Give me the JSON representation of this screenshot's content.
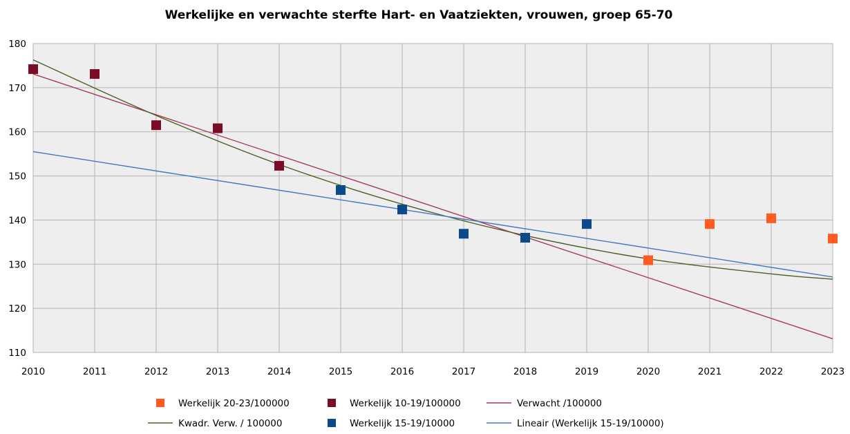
{
  "chart_data": {
    "type": "scatter",
    "title": "Werkelijke en verwachte sterfte Hart- en Vaatziekten, vrouwen, groep 65-70",
    "xlim": [
      2010,
      2023
    ],
    "ylim": [
      110,
      180
    ],
    "x_ticks": [
      "2010",
      "2011",
      "2012",
      "2013",
      "2014",
      "2015",
      "2016",
      "2017",
      "2018",
      "2019",
      "2020",
      "2021",
      "2022",
      "2023"
    ],
    "y_ticks": [
      "110",
      "120",
      "130",
      "140",
      "150",
      "160",
      "170",
      "180"
    ],
    "grid": true,
    "legend_position": "bottom",
    "series": [
      {
        "name": "Werkelijk 20-23/100000",
        "kind": "points",
        "color": "#ff5a1f",
        "x": [
          2020,
          2021,
          2022,
          2023
        ],
        "y": [
          130.9,
          139.1,
          140.4,
          135.8
        ]
      },
      {
        "name": "Werkelijk 10-19/100000",
        "kind": "points",
        "color": "#7b0c25",
        "x": [
          2010,
          2011,
          2012,
          2013,
          2014
        ],
        "y": [
          174.2,
          173.1,
          161.5,
          160.8,
          152.3
        ]
      },
      {
        "name": "Verwacht /100000",
        "kind": "line",
        "color": "#a8395a",
        "x": [
          2010,
          2023
        ],
        "y": [
          173.1,
          113.1
        ]
      },
      {
        "name": "Kwadr. Verw. / 100000",
        "kind": "curve",
        "color": "#4d5e1f",
        "x": [
          2010,
          2012,
          2014,
          2016,
          2018,
          2020,
          2022,
          2023
        ],
        "y": [
          176.3,
          163.7,
          152.6,
          143.6,
          136.5,
          131.2,
          127.8,
          126.6
        ]
      },
      {
        "name": "Werkelijk 15-19/10000",
        "kind": "points",
        "color": "#0d4a8c",
        "x": [
          2015,
          2016,
          2017,
          2018,
          2019
        ],
        "y": [
          146.8,
          142.4,
          136.9,
          136.0,
          139.1
        ]
      },
      {
        "name": "Lineair (Werkelijk 15-19/10000)",
        "kind": "line",
        "color": "#3f78c3",
        "x": [
          2010,
          2023
        ],
        "y": [
          155.5,
          127.1
        ]
      }
    ]
  }
}
